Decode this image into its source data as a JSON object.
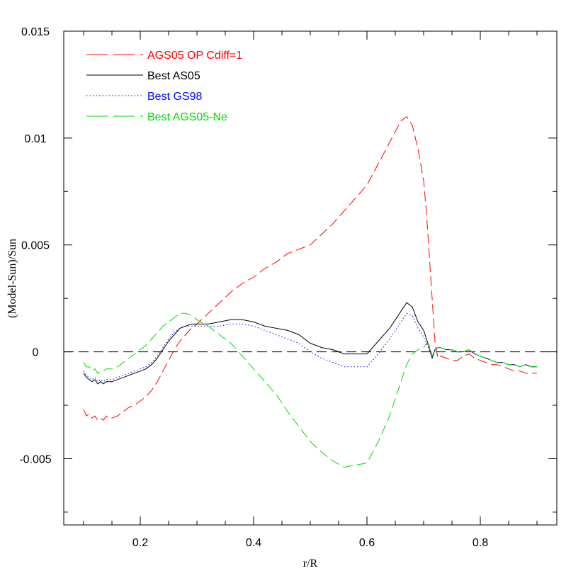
{
  "chart_data": {
    "type": "line",
    "title": "",
    "xlabel": "r/R",
    "ylabel": "(Model-Sun)/Sun",
    "xlim": [
      0.065,
      0.935
    ],
    "ylim": [
      -0.0081,
      0.015
    ],
    "x_ticks": [
      0.2,
      0.4,
      0.6,
      0.8
    ],
    "x_tick_labels": [
      "0.2",
      "0.4",
      "0.6",
      "0.8"
    ],
    "y_ticks": [
      -0.005,
      0,
      0.005,
      0.01,
      0.015
    ],
    "y_tick_labels": [
      "-0.005",
      "0",
      "0.005",
      "0.01",
      "0.015"
    ],
    "grid": false,
    "legend_position": "top-left",
    "reference_line": {
      "y": 0,
      "style": "dashed",
      "color": "#000000"
    },
    "series": [
      {
        "name": "AGS05 OP Cdiff=1",
        "color": "#ff0000",
        "dash": "long-dash",
        "x": [
          0.1,
          0.105,
          0.11,
          0.115,
          0.12,
          0.125,
          0.13,
          0.135,
          0.14,
          0.145,
          0.15,
          0.16,
          0.17,
          0.18,
          0.19,
          0.2,
          0.21,
          0.22,
          0.23,
          0.24,
          0.25,
          0.26,
          0.27,
          0.28,
          0.29,
          0.3,
          0.32,
          0.34,
          0.36,
          0.38,
          0.4,
          0.42,
          0.44,
          0.46,
          0.48,
          0.5,
          0.52,
          0.54,
          0.56,
          0.58,
          0.6,
          0.62,
          0.64,
          0.66,
          0.67,
          0.68,
          0.69,
          0.7,
          0.705,
          0.71,
          0.715,
          0.72,
          0.725,
          0.73,
          0.74,
          0.75,
          0.76,
          0.77,
          0.78,
          0.79,
          0.8,
          0.81,
          0.82,
          0.83,
          0.84,
          0.85,
          0.86,
          0.87,
          0.88,
          0.89,
          0.9
        ],
        "y": [
          -0.0027,
          -0.003,
          -0.0029,
          -0.0031,
          -0.003,
          -0.0032,
          -0.0031,
          -0.0032,
          -0.003,
          -0.0031,
          -0.0031,
          -0.003,
          -0.0028,
          -0.0026,
          -0.0025,
          -0.0023,
          -0.0021,
          -0.0018,
          -0.0014,
          -0.0009,
          -0.0004,
          0.0001,
          0.0005,
          0.0008,
          0.0011,
          0.0013,
          0.0018,
          0.0023,
          0.0028,
          0.0032,
          0.0035,
          0.0039,
          0.0042,
          0.0046,
          0.0048,
          0.005,
          0.0055,
          0.006,
          0.0066,
          0.0072,
          0.0078,
          0.0088,
          0.0098,
          0.0108,
          0.011,
          0.0106,
          0.0095,
          0.008,
          0.0065,
          0.0045,
          0.0025,
          0.0005,
          -0.0003,
          -0.0002,
          -0.0003,
          -0.0004,
          -0.0004,
          -0.0002,
          -0.0001,
          -0.0003,
          -0.0004,
          -0.0005,
          -0.0006,
          -0.0006,
          -0.0007,
          -0.0008,
          -0.0009,
          -0.0009,
          -0.001,
          -0.001,
          -0.001
        ]
      },
      {
        "name": "Best AS05",
        "color": "#000000",
        "dash": "solid",
        "x": [
          0.1,
          0.105,
          0.11,
          0.115,
          0.12,
          0.125,
          0.13,
          0.135,
          0.14,
          0.145,
          0.15,
          0.16,
          0.17,
          0.18,
          0.19,
          0.2,
          0.21,
          0.22,
          0.23,
          0.24,
          0.25,
          0.26,
          0.27,
          0.28,
          0.29,
          0.3,
          0.32,
          0.34,
          0.36,
          0.38,
          0.4,
          0.42,
          0.44,
          0.46,
          0.48,
          0.5,
          0.52,
          0.54,
          0.56,
          0.58,
          0.6,
          0.62,
          0.64,
          0.66,
          0.67,
          0.68,
          0.69,
          0.7,
          0.705,
          0.71,
          0.715,
          0.72,
          0.725,
          0.73,
          0.74,
          0.75,
          0.76,
          0.77,
          0.78,
          0.79,
          0.8,
          0.81,
          0.82,
          0.83,
          0.84,
          0.85,
          0.86,
          0.87,
          0.88,
          0.89,
          0.9
        ],
        "y": [
          -0.001,
          -0.0012,
          -0.0013,
          -0.0014,
          -0.0013,
          -0.0015,
          -0.0014,
          -0.0015,
          -0.0014,
          -0.0014,
          -0.0014,
          -0.0013,
          -0.0012,
          -0.0011,
          -0.001,
          -0.0009,
          -0.0008,
          -0.0006,
          -0.0003,
          0.0001,
          0.0005,
          0.0008,
          0.0011,
          0.0012,
          0.0013,
          0.0013,
          0.0013,
          0.0014,
          0.0015,
          0.0015,
          0.0014,
          0.0012,
          0.0011,
          0.001,
          0.0008,
          0.0004,
          0.0002,
          0.0001,
          -0.0001,
          -0.0001,
          -0.0001,
          0.0005,
          0.0011,
          0.0019,
          0.0023,
          0.0021,
          0.0014,
          0.001,
          0.0006,
          0.0002,
          -0.0003,
          0.0001,
          0.0002,
          0.0002,
          0.0001,
          0.0001,
          0.0,
          0.0,
          0.0001,
          -0.0001,
          -0.0002,
          -0.0003,
          -0.0004,
          -0.0005,
          -0.0005,
          -0.0006,
          -0.0006,
          -0.0007,
          -0.0006,
          -0.0007,
          -0.0007
        ]
      },
      {
        "name": "Best GS98",
        "color": "#0000ff",
        "dash": "dotted",
        "x": [
          0.1,
          0.105,
          0.11,
          0.115,
          0.12,
          0.125,
          0.13,
          0.135,
          0.14,
          0.145,
          0.15,
          0.16,
          0.17,
          0.18,
          0.19,
          0.2,
          0.21,
          0.22,
          0.23,
          0.24,
          0.25,
          0.26,
          0.27,
          0.28,
          0.29,
          0.3,
          0.32,
          0.34,
          0.36,
          0.38,
          0.4,
          0.42,
          0.44,
          0.46,
          0.48,
          0.5,
          0.52,
          0.54,
          0.56,
          0.58,
          0.6,
          0.62,
          0.64,
          0.66,
          0.67,
          0.68,
          0.69,
          0.7,
          0.705,
          0.71,
          0.715,
          0.72,
          0.725,
          0.73,
          0.74,
          0.75,
          0.76,
          0.77,
          0.78,
          0.79,
          0.8,
          0.81,
          0.82,
          0.83,
          0.84,
          0.85,
          0.86,
          0.87,
          0.88,
          0.89,
          0.9
        ],
        "y": [
          -0.0009,
          -0.0011,
          -0.0012,
          -0.0013,
          -0.0012,
          -0.0014,
          -0.0013,
          -0.0014,
          -0.0013,
          -0.0013,
          -0.0013,
          -0.0012,
          -0.0011,
          -0.001,
          -0.0009,
          -0.0008,
          -0.0007,
          -0.0005,
          -0.0002,
          0.0002,
          0.0006,
          0.0009,
          0.0011,
          0.0012,
          0.0012,
          0.0012,
          0.0012,
          0.0012,
          0.0013,
          0.0013,
          0.0012,
          0.001,
          0.0008,
          0.0006,
          0.0004,
          0.0,
          -0.0003,
          -0.0005,
          -0.0007,
          -0.0007,
          -0.0007,
          -0.0001,
          0.0006,
          0.0014,
          0.0018,
          0.0017,
          0.0011,
          0.0007,
          0.0004,
          0.0001,
          -0.0003,
          0.0001,
          0.0002,
          0.0002,
          0.0001,
          0.0001,
          0.0,
          0.0,
          0.0001,
          -0.0001,
          -0.0002,
          -0.0003,
          -0.0004,
          -0.0005,
          -0.0005,
          -0.0006,
          -0.0006,
          -0.0007,
          -0.0006,
          -0.0007,
          -0.0007
        ]
      },
      {
        "name": "Best AGS05-Ne",
        "color": "#00dd00",
        "dash": "long-dash",
        "x": [
          0.1,
          0.105,
          0.11,
          0.115,
          0.12,
          0.125,
          0.13,
          0.135,
          0.14,
          0.145,
          0.15,
          0.16,
          0.17,
          0.18,
          0.19,
          0.2,
          0.21,
          0.22,
          0.23,
          0.24,
          0.25,
          0.26,
          0.27,
          0.28,
          0.29,
          0.3,
          0.32,
          0.34,
          0.36,
          0.38,
          0.4,
          0.42,
          0.44,
          0.46,
          0.48,
          0.5,
          0.52,
          0.54,
          0.56,
          0.58,
          0.6,
          0.62,
          0.64,
          0.66,
          0.67,
          0.68,
          0.69,
          0.7,
          0.705,
          0.71,
          0.715,
          0.72,
          0.725,
          0.73,
          0.74,
          0.75,
          0.76,
          0.77,
          0.78,
          0.79,
          0.8,
          0.81,
          0.82,
          0.83,
          0.84,
          0.85,
          0.86,
          0.87,
          0.88,
          0.89,
          0.9
        ],
        "y": [
          -0.0005,
          -0.0007,
          -0.0007,
          -0.0009,
          -0.0008,
          -0.001,
          -0.0009,
          -0.0009,
          -0.0008,
          -0.0008,
          -0.0008,
          -0.0007,
          -0.0005,
          -0.0003,
          -0.0001,
          0.0001,
          0.0003,
          0.0006,
          0.0009,
          0.0012,
          0.0014,
          0.0016,
          0.0018,
          0.0018,
          0.0017,
          0.0015,
          0.0012,
          0.0008,
          0.0004,
          -0.0002,
          -0.0008,
          -0.0014,
          -0.002,
          -0.0028,
          -0.0035,
          -0.0042,
          -0.0047,
          -0.0051,
          -0.0054,
          -0.0053,
          -0.0052,
          -0.0042,
          -0.003,
          -0.0014,
          -0.0006,
          -0.0001,
          0.0001,
          0.0002,
          0.0004,
          0.0003,
          -0.0002,
          0.0001,
          0.0002,
          0.0002,
          0.0001,
          0.0001,
          0.0,
          0.0,
          0.0001,
          -0.0001,
          -0.0002,
          -0.0003,
          -0.0004,
          -0.0005,
          -0.0005,
          -0.0006,
          -0.0006,
          -0.0007,
          -0.0006,
          -0.0007,
          -0.0007
        ]
      }
    ]
  }
}
